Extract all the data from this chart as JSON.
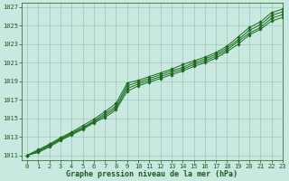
{
  "title": "Graphe pression niveau de la mer (hPa)",
  "xlabel": "Graphe pression niveau de la mer (hPa)",
  "xlim": [
    -0.5,
    23
  ],
  "ylim": [
    1010.5,
    1027.5
  ],
  "yticks": [
    1011,
    1013,
    1015,
    1017,
    1019,
    1021,
    1023,
    1025,
    1027
  ],
  "xticks": [
    0,
    1,
    2,
    3,
    4,
    5,
    6,
    7,
    8,
    9,
    10,
    11,
    12,
    13,
    14,
    15,
    16,
    17,
    18,
    19,
    20,
    21,
    22,
    23
  ],
  "bg_color": "#c8e8e0",
  "grid_color": "#9fc8c0",
  "line_color": "#1a6b1a",
  "series": [
    [
      1011.0,
      1011.6,
      1012.2,
      1012.9,
      1013.5,
      1014.2,
      1014.9,
      1015.7,
      1016.6,
      1018.8,
      1019.1,
      1019.5,
      1019.9,
      1020.3,
      1020.8,
      1021.2,
      1021.6,
      1022.1,
      1022.8,
      1023.8,
      1024.8,
      1025.4,
      1026.4,
      1026.8
    ],
    [
      1011.0,
      1011.5,
      1012.1,
      1012.8,
      1013.4,
      1014.0,
      1014.7,
      1015.5,
      1016.3,
      1018.5,
      1018.9,
      1019.3,
      1019.7,
      1020.1,
      1020.5,
      1021.0,
      1021.4,
      1021.9,
      1022.6,
      1023.5,
      1024.5,
      1025.1,
      1026.1,
      1026.5
    ],
    [
      1011.0,
      1011.4,
      1012.0,
      1012.7,
      1013.3,
      1013.9,
      1014.6,
      1015.3,
      1016.1,
      1018.2,
      1018.7,
      1019.1,
      1019.5,
      1019.9,
      1020.3,
      1020.8,
      1021.2,
      1021.7,
      1022.4,
      1023.3,
      1024.2,
      1024.8,
      1025.8,
      1026.2
    ],
    [
      1011.0,
      1011.3,
      1011.9,
      1012.6,
      1013.2,
      1013.8,
      1014.5,
      1015.1,
      1015.9,
      1017.9,
      1018.5,
      1018.9,
      1019.3,
      1019.7,
      1020.1,
      1020.6,
      1021.0,
      1021.5,
      1022.2,
      1023.0,
      1024.0,
      1024.6,
      1025.5,
      1025.9
    ]
  ],
  "marker": "D",
  "marker_size": 1.8,
  "linewidth": 0.7,
  "font_color": "#1a5c1a",
  "tick_fontsize": 5.0,
  "title_fontsize": 6.0
}
